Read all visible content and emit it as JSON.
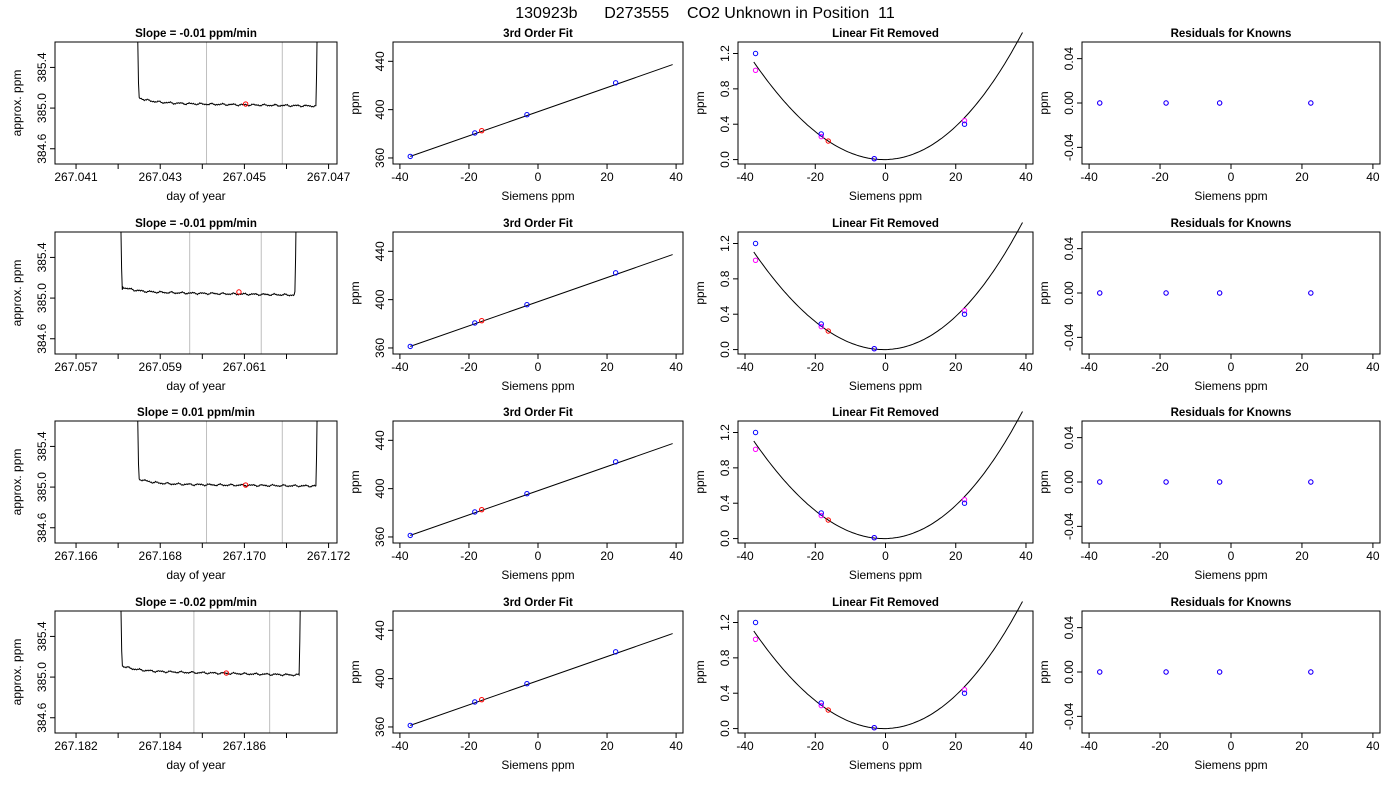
{
  "page_title": "130923b      D273555    CO2 Unknown in Position  11",
  "chart_data": {
    "panel_types": {
      "timeseries": {
        "type": "line",
        "xlabel": "day of year",
        "ylabel": "approx. ppm",
        "ylim": [
          384.45,
          385.65
        ],
        "yticks": [
          384.6,
          385.0,
          385.4
        ],
        "ytick_labels": [
          "384.6",
          "385.0",
          "385.4"
        ]
      },
      "fit": {
        "type": "scatter",
        "title": "3rd Order Fit",
        "xlabel": "Siemens ppm",
        "ylabel": "ppm",
        "xlim": [
          -42,
          42
        ],
        "ylim": [
          355,
          456
        ],
        "xticks": [
          -40,
          -20,
          0,
          20,
          40
        ],
        "xtick_labels": [
          "-40",
          "-20",
          "0",
          "20",
          "40"
        ],
        "yticks": [
          360,
          400,
          440
        ],
        "ytick_labels": [
          "360",
          "400",
          "440"
        ],
        "fit_line": {
          "x0": -37,
          "y0": 361.3,
          "slope": 1.0,
          "x_end": 39
        },
        "known_points": [
          [
            -37,
            361.3
          ],
          [
            -18.3,
            380.7
          ],
          [
            -3.2,
            395.8
          ],
          [
            22.5,
            422.2
          ]
        ],
        "unknown_point": [
          -16.3,
          382.6
        ]
      },
      "linear_removed": {
        "type": "scatter",
        "title": "Linear Fit Removed",
        "xlabel": "Siemens ppm",
        "ylabel": "ppm",
        "xlim": [
          -42,
          42
        ],
        "ylim": [
          -0.05,
          1.33
        ],
        "xticks": [
          -40,
          -20,
          0,
          20,
          40
        ],
        "xtick_labels": [
          "-40",
          "-20",
          "0",
          "20",
          "40"
        ],
        "yticks": [
          0.0,
          0.4,
          0.8,
          1.2
        ],
        "ytick_labels": [
          "0.0",
          "0.4",
          "0.8",
          "1.2"
        ],
        "curve": {
          "a": 0.000862,
          "vertex_x": -0.5,
          "b3": 1.5e-06,
          "x_start": -37.5,
          "x_end": 39
        },
        "known_points": [
          [
            -37,
            1.2
          ],
          [
            -18.3,
            0.29
          ],
          [
            -3.2,
            0.01
          ],
          [
            22.5,
            0.4
          ]
        ],
        "magenta_points": [
          [
            -37,
            1.01
          ],
          [
            -18.3,
            0.26
          ],
          [
            -3.2,
            0.01
          ],
          [
            22.5,
            0.44
          ]
        ],
        "unknown_point": [
          -16.3,
          0.21
        ]
      },
      "residuals": {
        "type": "scatter",
        "title": "Residuals for Knowns",
        "xlabel": "Siemens ppm",
        "ylabel": "ppm",
        "xlim": [
          -42,
          42
        ],
        "ylim": [
          -0.055,
          0.055
        ],
        "xticks": [
          -40,
          -20,
          0,
          20,
          40
        ],
        "xtick_labels": [
          "-40",
          "-20",
          "0",
          "20",
          "40"
        ],
        "yticks": [
          -0.04,
          0.0,
          0.04
        ],
        "ytick_labels": [
          "-0.04",
          "0.00",
          "0.04"
        ],
        "points": [
          [
            -37,
            0
          ],
          [
            -18.3,
            0
          ],
          [
            -3.2,
            0
          ],
          [
            22.5,
            0
          ]
        ]
      }
    },
    "colors": {
      "line": "#000000",
      "known": "#0000ff",
      "magenta": "#ff00ff",
      "unknown": "#ff0000",
      "vline": "#bebebe"
    },
    "rows": [
      {
        "slope_title": "Slope =  -0.01  ppm/min",
        "xlim": [
          267.0405,
          267.0472
        ],
        "xticks": [
          267.041,
          267.042,
          267.043,
          267.044,
          267.045,
          267.046,
          267.047
        ],
        "xtick_labels": [
          "267.041",
          "",
          "267.043",
          "",
          "267.045",
          "",
          "267.047"
        ],
        "vlines": [
          267.0441,
          267.0459
        ],
        "plateau": {
          "start": 267.0425,
          "end": 267.0467,
          "level": 385.05,
          "rise_start": 267.0424,
          "rise_end": 267.0468,
          "drift": -0.03
        },
        "unknown": [
          267.04503,
          385.04
        ]
      },
      {
        "slope_title": "Slope =  -0.01  ppm/min",
        "xlim": [
          267.0565,
          267.0632
        ],
        "xticks": [
          267.057,
          267.058,
          267.059,
          267.06,
          267.061,
          267.062
        ],
        "xtick_labels": [
          "267.057",
          "",
          "267.059",
          "",
          "267.061",
          ""
        ],
        "vlines": [
          267.0597,
          267.0614
        ],
        "plateau": {
          "start": 267.0581,
          "end": 267.0622,
          "level": 385.06,
          "rise_start": 267.058,
          "rise_end": 267.0623,
          "drift": -0.03
        },
        "unknown": [
          267.06087,
          385.06
        ]
      },
      {
        "slope_title": "Slope =  0.01  ppm/min",
        "xlim": [
          267.1655,
          267.1722
        ],
        "xticks": [
          267.166,
          267.167,
          267.168,
          267.169,
          267.17,
          267.171,
          267.172
        ],
        "xtick_labels": [
          "267.166",
          "",
          "267.168",
          "",
          "267.170",
          "",
          "267.172"
        ],
        "vlines": [
          267.1691,
          267.1709
        ],
        "plateau": {
          "start": 267.1675,
          "end": 267.1717,
          "level": 385.03,
          "rise_start": 267.1674,
          "rise_end": 267.1718,
          "drift": -0.02
        },
        "unknown": [
          267.17003,
          385.02
        ]
      },
      {
        "slope_title": "Slope =  -0.02  ppm/min",
        "xlim": [
          267.1815,
          267.1882
        ],
        "xticks": [
          267.182,
          267.183,
          267.184,
          267.185,
          267.186,
          267.187
        ],
        "xtick_labels": [
          "267.182",
          "",
          "267.184",
          "",
          "267.186",
          ""
        ],
        "vlines": [
          267.1848,
          267.1866
        ],
        "plateau": {
          "start": 267.1831,
          "end": 267.1873,
          "level": 385.06,
          "rise_start": 267.183,
          "rise_end": 267.1874,
          "drift": -0.04
        },
        "unknown": [
          267.18557,
          385.04
        ]
      }
    ]
  }
}
